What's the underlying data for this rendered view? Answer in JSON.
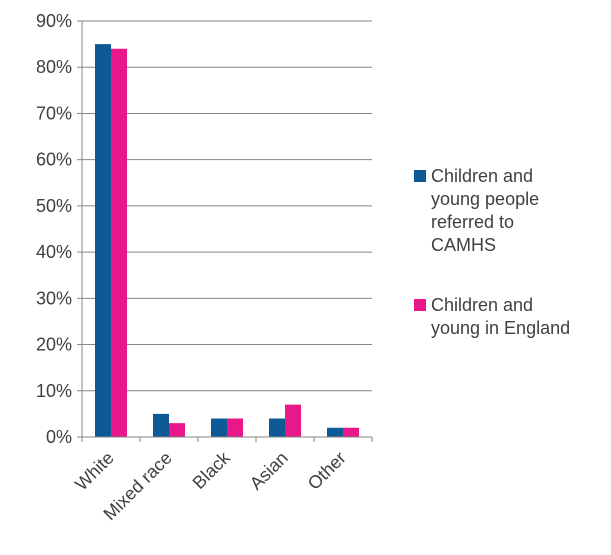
{
  "chart_data": {
    "type": "bar",
    "title": "",
    "xlabel": "",
    "ylabel": "",
    "categories": [
      "White",
      "Mixed race",
      "Black",
      "Asian",
      "Other"
    ],
    "series": [
      {
        "name": "Children and young people referred to CAMHS",
        "legend_lines": [
          "Children and",
          "young people",
          "referred to",
          "CAMHS"
        ],
        "color": "#0d5a96",
        "values": [
          85,
          5,
          4,
          4,
          2
        ]
      },
      {
        "name": "Children and young in England",
        "legend_lines": [
          "Children and",
          "young in England"
        ],
        "color": "#e8178a",
        "values": [
          84,
          3,
          4,
          7,
          2
        ]
      }
    ],
    "ylim": [
      0,
      90
    ],
    "yticks": [
      0,
      10,
      20,
      30,
      40,
      50,
      60,
      70,
      80,
      90
    ],
    "ytick_labels": [
      "0%",
      "10%",
      "20%",
      "30%",
      "40%",
      "50%",
      "60%",
      "70%",
      "80%",
      "90%"
    ],
    "grid": true,
    "legend_position": "right"
  }
}
